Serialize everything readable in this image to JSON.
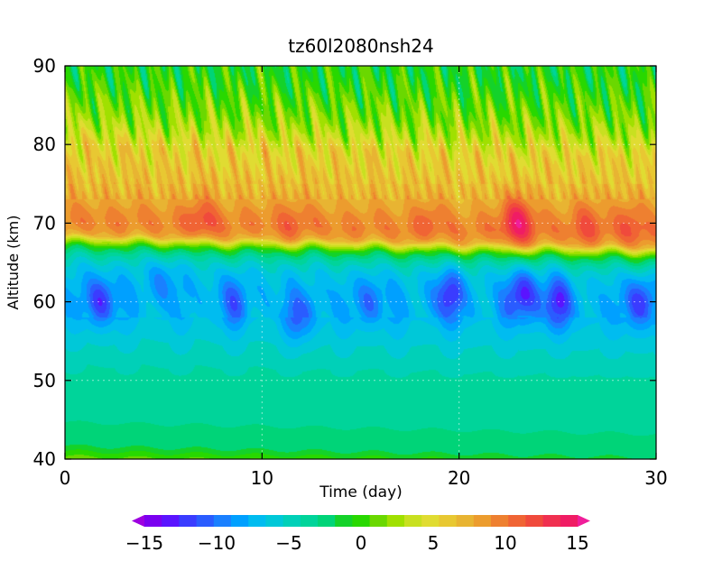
{
  "chart_data": {
    "type": "heatmap",
    "title": "tz60l2080nsh24",
    "xlabel": "Time (day)",
    "ylabel": "Altitude (km)",
    "xlim": [
      0,
      30
    ],
    "ylim": [
      40,
      90
    ],
    "xticks": [
      0,
      10,
      20,
      30
    ],
    "yticks": [
      40,
      50,
      60,
      70,
      80,
      90
    ],
    "grid": true,
    "colorbar": {
      "min": -15,
      "max": 15,
      "ticks": [
        -15,
        -10,
        -5,
        0,
        5,
        10,
        15
      ],
      "tick_labels": [
        "−15",
        "−10",
        "−5",
        "0",
        "5",
        "10",
        "15"
      ],
      "colors": [
        "#9d00e0",
        "#7a00f0",
        "#5a14ff",
        "#3a3cff",
        "#2a5cff",
        "#1a80ff",
        "#00a0ff",
        "#00bcf0",
        "#00c8d8",
        "#00d0b8",
        "#00d49a",
        "#00d478",
        "#14d22a",
        "#28d800",
        "#6ad800",
        "#a0e000",
        "#c8e020",
        "#e0dc32",
        "#e8c832",
        "#e8b432",
        "#ec9c2e",
        "#ee8030",
        "#f06434",
        "#f04a3c",
        "#f03050",
        "#f01c64",
        "#f01e9a"
      ]
    },
    "altitude_profile": {
      "altitude_km": [
        40,
        41,
        42,
        44,
        46,
        48,
        50,
        52,
        54,
        56,
        58,
        60,
        62,
        64,
        65,
        66,
        67,
        67.5,
        68,
        68.5,
        69,
        70,
        71,
        72,
        74,
        76,
        78,
        80,
        82,
        84,
        86,
        88,
        90
      ],
      "value": [
        1.2,
        -0.6,
        -2.4,
        -2.9,
        -3.2,
        -3.6,
        -4.0,
        -4.2,
        -5.0,
        -5.6,
        -6.4,
        -7.0,
        -7.0,
        -6.3,
        -5.4,
        -3.8,
        -1.2,
        1.6,
        4.0,
        7.2,
        8.4,
        9.5,
        9.3,
        8.5,
        7.2,
        6.5,
        5.8,
        5.2,
        3.2,
        1.8,
        0.9,
        0.0,
        -0.6
      ]
    },
    "features": [
      {
        "t": 1.8,
        "z": 60,
        "value": -12
      },
      {
        "t": 5.0,
        "z": 63,
        "value": -9
      },
      {
        "t": 8.5,
        "z": 60,
        "value": -10
      },
      {
        "t": 12.0,
        "z": 58,
        "value": -10
      },
      {
        "t": 15.5,
        "z": 60,
        "value": -10
      },
      {
        "t": 19.5,
        "z": 61,
        "value": -12
      },
      {
        "t": 23.2,
        "z": 61,
        "value": -13
      },
      {
        "t": 25.0,
        "z": 60,
        "value": -12
      },
      {
        "t": 29.2,
        "z": 60,
        "value": -12
      },
      {
        "t": 7.0,
        "z": 70.5,
        "value": 12
      },
      {
        "t": 11.5,
        "z": 70.5,
        "value": 11
      },
      {
        "t": 18.5,
        "z": 70.5,
        "value": 11
      },
      {
        "t": 23.0,
        "z": 70.5,
        "value": 15
      },
      {
        "t": 26.5,
        "z": 70.5,
        "value": 12
      },
      {
        "t": 28.8,
        "z": 70.5,
        "value": 12
      }
    ]
  }
}
